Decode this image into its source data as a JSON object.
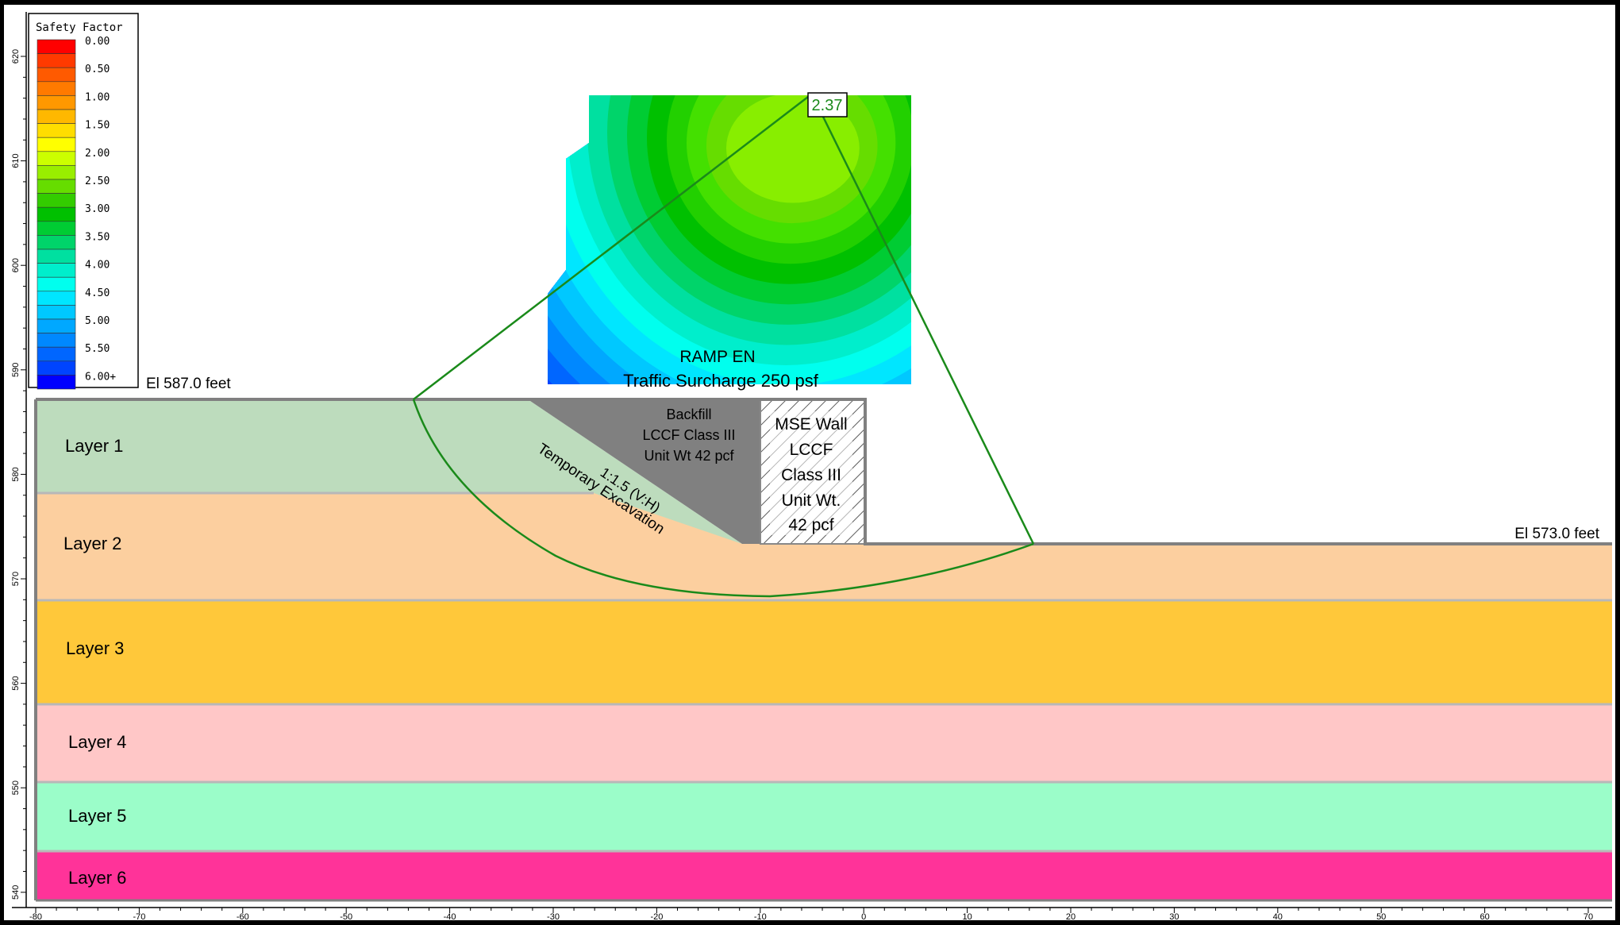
{
  "legend": {
    "title": "Safety Factor",
    "entries": [
      {
        "label": "0.00",
        "color": "#ff0000"
      },
      {
        "label": "",
        "color": "#ff3a00"
      },
      {
        "label": "0.50",
        "color": "#ff5a00"
      },
      {
        "label": "",
        "color": "#ff7a00"
      },
      {
        "label": "1.00",
        "color": "#ff9800"
      },
      {
        "label": "",
        "color": "#ffb800"
      },
      {
        "label": "1.50",
        "color": "#ffdd00"
      },
      {
        "label": "",
        "color": "#ffff00"
      },
      {
        "label": "2.00",
        "color": "#ccff00"
      },
      {
        "label": "",
        "color": "#99ee00"
      },
      {
        "label": "2.50",
        "color": "#66dd00"
      },
      {
        "label": "",
        "color": "#33cc00"
      },
      {
        "label": "3.00",
        "color": "#00c000"
      },
      {
        "label": "",
        "color": "#00cc33"
      },
      {
        "label": "3.50",
        "color": "#00d46a"
      },
      {
        "label": "",
        "color": "#00e0a0"
      },
      {
        "label": "4.00",
        "color": "#00eecc"
      },
      {
        "label": "",
        "color": "#00ffee"
      },
      {
        "label": "4.50",
        "color": "#00e6ff"
      },
      {
        "label": "",
        "color": "#00c8ff"
      },
      {
        "label": "5.00",
        "color": "#00a8ff"
      },
      {
        "label": "",
        "color": "#0088ff"
      },
      {
        "label": "5.50",
        "color": "#0066ff"
      },
      {
        "label": "",
        "color": "#0044ff"
      },
      {
        "label": "6.00+",
        "color": "#0000ff"
      }
    ]
  },
  "elevations": {
    "top": "El 587.0 feet",
    "bottom": "El 573.0 feet"
  },
  "surcharge": {
    "line1": "RAMP EN",
    "line2": "Traffic Surcharge 250 psf"
  },
  "backfill": {
    "line1": "Backfill",
    "line2": "LCCF Class III",
    "line3": "Unit Wt 42 pcf"
  },
  "mse_wall": {
    "line1": "MSE Wall",
    "line2": "LCCF",
    "line3": "Class III",
    "line4": "Unit Wt.",
    "line5": "42 pcf"
  },
  "excavation": {
    "slope": "1:1.5 (V:H)",
    "label": "Temporary Excavation"
  },
  "critical_sf": "2.37",
  "layers": [
    {
      "name": "Layer 1",
      "color": "#bddcbd"
    },
    {
      "name": "Layer 2",
      "color": "#fccf9f"
    },
    {
      "name": "Layer 3",
      "color": "#ffc83a"
    },
    {
      "name": "Layer 4",
      "color": "#ffc7c7"
    },
    {
      "name": "Layer 5",
      "color": "#9bfdc9"
    },
    {
      "name": "Layer 6",
      "color": "#ff3399"
    }
  ],
  "x_ticks": [
    "-80",
    "-70",
    "-60",
    "-50",
    "-40",
    "-30",
    "-20",
    "-10",
    "0",
    "10",
    "20",
    "30",
    "40",
    "50",
    "60",
    "70"
  ],
  "y_ticks": [
    "620",
    "610",
    "600",
    "590",
    "580",
    "570",
    "560",
    "550",
    "540"
  ]
}
